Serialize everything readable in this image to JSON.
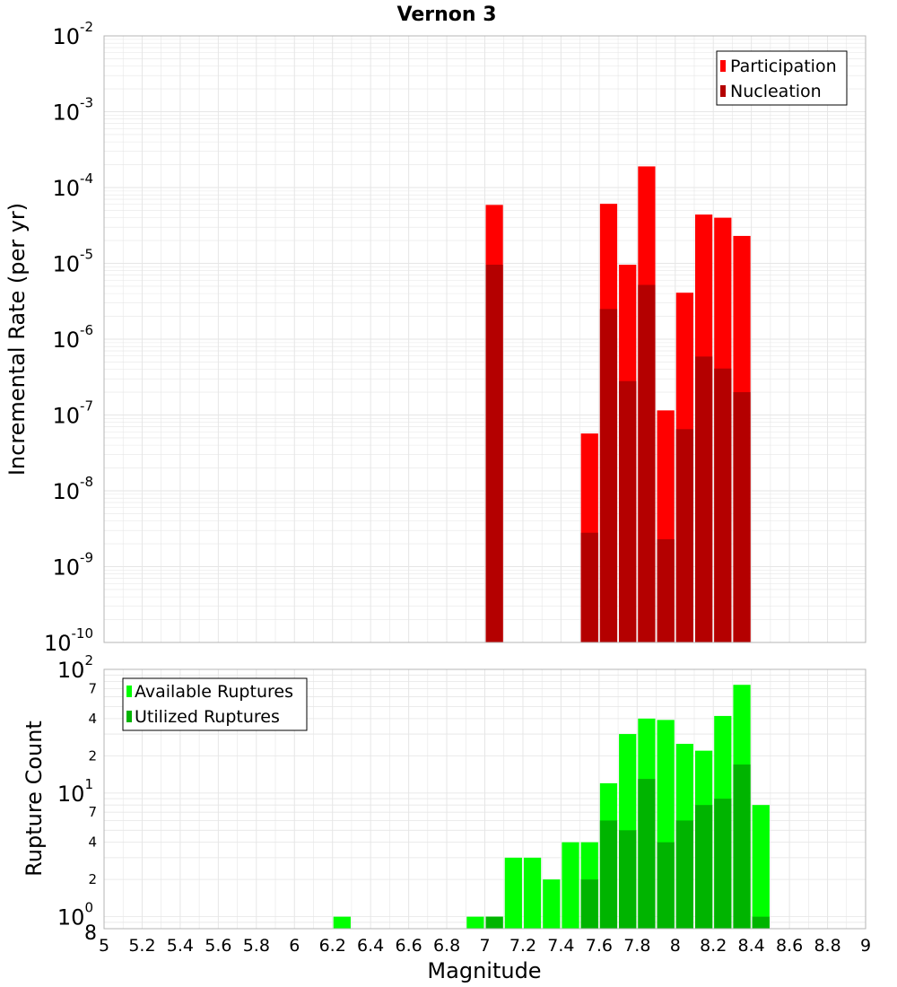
{
  "colors": {
    "participation": "#ff0000",
    "nucleation": "#b40000",
    "available": "#00ff00",
    "utilized": "#00b400",
    "grid": "#e6e6e6",
    "frame": "#b4b4b4"
  },
  "chart_data": [
    {
      "type": "bar",
      "title": "Vernon 3",
      "ylabel": "Incremental Rate (per yr)",
      "yscale": "log",
      "ylim_exp": [
        -10,
        -2
      ],
      "ytick_exps": [
        "-2",
        "-3",
        "-4",
        "-5",
        "-6",
        "-7",
        "-8",
        "-9",
        "-10"
      ],
      "ytick_base": "10",
      "legend_position": "top-right",
      "legend": [
        {
          "label": "Participation",
          "key": "participation"
        },
        {
          "label": "Nucleation",
          "key": "nucleation"
        }
      ],
      "x": [
        7.05,
        7.55,
        7.65,
        7.75,
        7.85,
        7.95,
        8.05,
        8.15,
        8.25,
        8.35
      ],
      "series": [
        {
          "name": "Participation",
          "key": "participation",
          "values": [
            5.9e-05,
            5.7e-08,
            6.1e-05,
            9.6e-06,
            0.00019,
            1.15e-07,
            4.1e-06,
            4.4e-05,
            4e-05,
            2.3e-05
          ]
        },
        {
          "name": "Nucleation",
          "key": "nucleation",
          "values": [
            9.6e-06,
            2.8e-09,
            2.5e-06,
            2.8e-07,
            5.2e-06,
            2.3e-09,
            6.5e-08,
            5.9e-07,
            4.1e-07,
            2e-07
          ]
        }
      ]
    },
    {
      "type": "bar",
      "ylabel": "Rupture Count",
      "xlabel": "Magnitude",
      "yscale": "log",
      "ylim": [
        0.8,
        100
      ],
      "major_ticks": [
        {
          "value": 1,
          "base": "10",
          "exp": "0"
        },
        {
          "value": 10,
          "base": "10",
          "exp": "1"
        },
        {
          "value": 100,
          "base": "10",
          "exp": "2"
        }
      ],
      "minor_ticks": [
        {
          "value": 0.8,
          "label": "8"
        },
        {
          "value": 2,
          "label": "2"
        },
        {
          "value": 4,
          "label": "4"
        },
        {
          "value": 7,
          "label": "7"
        },
        {
          "value": 20,
          "label": "2"
        },
        {
          "value": 40,
          "label": "4"
        },
        {
          "value": 70,
          "label": "7"
        }
      ],
      "legend_position": "top-left",
      "legend": [
        {
          "label": "Available Ruptures",
          "key": "available"
        },
        {
          "label": "Utilized Ruptures",
          "key": "utilized"
        }
      ],
      "x": [
        6.25,
        6.95,
        7.05,
        7.15,
        7.25,
        7.35,
        7.45,
        7.55,
        7.65,
        7.75,
        7.85,
        7.95,
        8.05,
        8.15,
        8.25,
        8.35,
        8.45
      ],
      "series": [
        {
          "name": "Available Ruptures",
          "key": "available",
          "values": [
            1,
            1,
            1,
            3,
            3,
            2,
            4,
            4,
            12,
            30,
            40,
            39,
            25,
            22,
            42,
            75,
            8
          ]
        },
        {
          "name": "Utilized Ruptures",
          "key": "utilized",
          "values": [
            0,
            0,
            1,
            0,
            0,
            0,
            0,
            2,
            6,
            5,
            13,
            4,
            6,
            8,
            9,
            17,
            1
          ]
        }
      ],
      "xlim": [
        5,
        9
      ],
      "xticks": [
        "5",
        "5.2",
        "5.4",
        "5.6",
        "5.8",
        "6",
        "6.2",
        "6.4",
        "6.6",
        "6.8",
        "7",
        "7.2",
        "7.4",
        "7.6",
        "7.8",
        "8",
        "8.2",
        "8.4",
        "8.6",
        "8.8",
        "9"
      ]
    }
  ]
}
